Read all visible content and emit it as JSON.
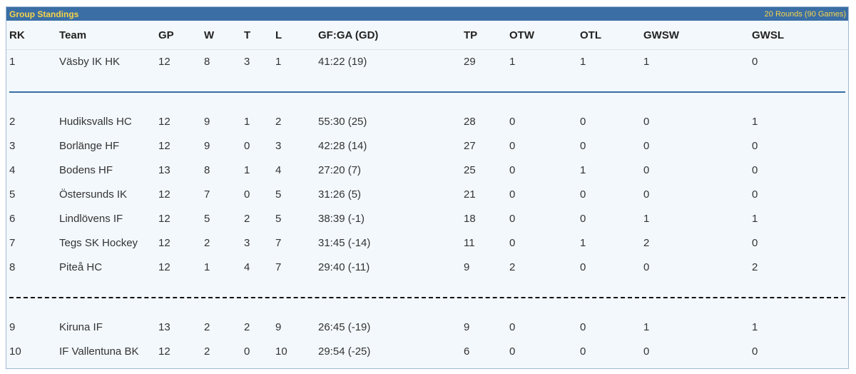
{
  "header": {
    "title": "Group Standings",
    "rounds": "20 Rounds (90 Games)"
  },
  "columns": [
    "RK",
    "Team",
    "GP",
    "W",
    "T",
    "L",
    "GF:GA (GD)",
    "TP",
    "OTW",
    "OTL",
    "GWSW",
    "GWSL"
  ],
  "rows": [
    [
      "1",
      "Väsby IK HK",
      "12",
      "8",
      "3",
      "1",
      "41:22 (19)",
      "29",
      "1",
      "1",
      "1",
      "0"
    ],
    [
      "2",
      "Hudiksvalls HC",
      "12",
      "9",
      "1",
      "2",
      "55:30 (25)",
      "28",
      "0",
      "0",
      "0",
      "1"
    ],
    [
      "3",
      "Borlänge HF",
      "12",
      "9",
      "0",
      "3",
      "42:28 (14)",
      "27",
      "0",
      "0",
      "0",
      "0"
    ],
    [
      "4",
      "Bodens HF",
      "13",
      "8",
      "1",
      "4",
      "27:20 (7)",
      "25",
      "0",
      "1",
      "0",
      "0"
    ],
    [
      "5",
      "Östersunds IK",
      "12",
      "7",
      "0",
      "5",
      "31:26 (5)",
      "21",
      "0",
      "0",
      "0",
      "0"
    ],
    [
      "6",
      "Lindlövens IF",
      "12",
      "5",
      "2",
      "5",
      "38:39 (-1)",
      "18",
      "0",
      "0",
      "1",
      "1"
    ],
    [
      "7",
      "Tegs SK Hockey",
      "12",
      "2",
      "3",
      "7",
      "31:45 (-14)",
      "11",
      "0",
      "1",
      "2",
      "0"
    ],
    [
      "8",
      "Piteå HC",
      "12",
      "1",
      "4",
      "7",
      "29:40 (-11)",
      "9",
      "2",
      "0",
      "0",
      "2"
    ],
    [
      "9",
      "Kiruna IF",
      "13",
      "2",
      "2",
      "9",
      "26:45 (-19)",
      "9",
      "0",
      "0",
      "1",
      "1"
    ],
    [
      "10",
      "IF Vallentuna BK",
      "12",
      "2",
      "0",
      "10",
      "29:54 (-25)",
      "6",
      "0",
      "0",
      "0",
      "0"
    ]
  ],
  "colors": {
    "title_bar": "#3a6ea5",
    "title_text": "#f5d34a",
    "background": "#f3f8fc",
    "solid_separator": "#3a6ea5",
    "dashed_separator": "#111111"
  }
}
